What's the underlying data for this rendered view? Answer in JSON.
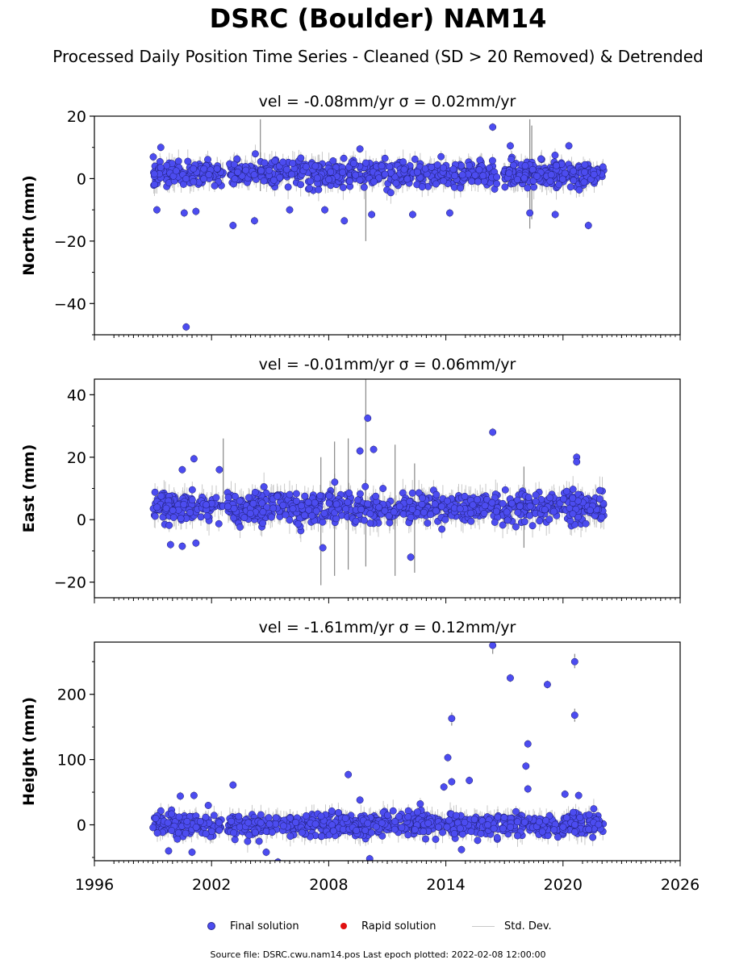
{
  "header": {
    "title": "DSRC (Boulder) NAM14",
    "subtitle": "Processed Daily Position Time Series - Cleaned (SD > 20 Removed) & Detrended"
  },
  "legend": {
    "final": "Final solution",
    "rapid": "Rapid solution",
    "std": "Std. Dev."
  },
  "footer": "Source file: DSRC.cwu.nam14.pos  Last epoch plotted: 2022-02-08 12:00:00",
  "colors": {
    "final_fill": "#4c4cf0",
    "final_edge": "#1a1a6a",
    "rapid": "#e01010",
    "std_dev": "#c8c8c8"
  },
  "chart_data": [
    {
      "type": "scatter",
      "component": "north",
      "title": "vel = -0.08mm/yr   σ = 0.02mm/yr",
      "ylabel": "North (mm)",
      "xlabel": "",
      "xlim": [
        1996,
        2026
      ],
      "ylim": [
        -50,
        20
      ],
      "yticks": [
        -40,
        -20,
        0,
        20
      ],
      "ytick_labels": [
        "−40",
        "−20",
        "0",
        "20"
      ],
      "xticks": [
        1996,
        2002,
        2008,
        2014,
        2020,
        2026
      ],
      "show_xtick_labels": false,
      "data_span": [
        1999.0,
        2022.1
      ],
      "gaps": [
        [
          2002.6,
          2002.8
        ],
        [
          2016.7,
          2016.9
        ]
      ],
      "cluster": {
        "center": 1.5,
        "spread": 2.0
      },
      "outliers": [
        {
          "x": 2000.7,
          "y": -47.5
        },
        {
          "x": 1999.4,
          "y": 10
        },
        {
          "x": 1999.2,
          "y": -10
        },
        {
          "x": 2000.6,
          "y": -11
        },
        {
          "x": 2001.2,
          "y": -10.5
        },
        {
          "x": 2003.1,
          "y": -15
        },
        {
          "x": 2004.2,
          "y": -13.5
        },
        {
          "x": 2006.0,
          "y": -10
        },
        {
          "x": 2007.8,
          "y": -10
        },
        {
          "x": 2008.8,
          "y": -13.5
        },
        {
          "x": 2009.6,
          "y": 9.5
        },
        {
          "x": 2010.2,
          "y": -11.5
        },
        {
          "x": 2012.3,
          "y": -11.5
        },
        {
          "x": 2014.2,
          "y": -11
        },
        {
          "x": 2016.4,
          "y": 16.5
        },
        {
          "x": 2017.3,
          "y": 10.5
        },
        {
          "x": 2018.3,
          "y": -11
        },
        {
          "x": 2019.6,
          "y": -11.5
        },
        {
          "x": 2020.3,
          "y": 10.5
        },
        {
          "x": 2021.3,
          "y": -15
        }
      ],
      "error_bars": [
        {
          "x": 2004.5,
          "y0": -4,
          "y1": 19
        },
        {
          "x": 2009.9,
          "y0": -20,
          "y1": 6
        },
        {
          "x": 2018.3,
          "y0": -16,
          "y1": 19
        },
        {
          "x": 2018.4,
          "y0": -13,
          "y1": 17
        }
      ]
    },
    {
      "type": "scatter",
      "component": "east",
      "title": "vel = -0.01mm/yr   σ = 0.06mm/yr",
      "ylabel": "East (mm)",
      "xlabel": "",
      "xlim": [
        1996,
        2026
      ],
      "ylim": [
        -25,
        45
      ],
      "yticks": [
        -20,
        0,
        20,
        40
      ],
      "ytick_labels": [
        "−20",
        "0",
        "20",
        "40"
      ],
      "xticks": [
        1996,
        2002,
        2008,
        2014,
        2020,
        2026
      ],
      "show_xtick_labels": false,
      "data_span": [
        1999.0,
        2022.1
      ],
      "gaps": [
        [
          2002.6,
          2002.8
        ],
        [
          2016.7,
          2016.9
        ]
      ],
      "cluster": {
        "center": 4,
        "spread": 2.4
      },
      "outliers": [
        {
          "x": 2000.5,
          "y": 16
        },
        {
          "x": 2001.1,
          "y": 19.5
        },
        {
          "x": 2002.4,
          "y": 16
        },
        {
          "x": 1999.9,
          "y": -8
        },
        {
          "x": 2000.5,
          "y": -8.5
        },
        {
          "x": 2001.2,
          "y": -7.5
        },
        {
          "x": 2007.7,
          "y": -9
        },
        {
          "x": 2009.6,
          "y": 22
        },
        {
          "x": 2010.0,
          "y": 32.5
        },
        {
          "x": 2010.3,
          "y": 22.5
        },
        {
          "x": 2012.2,
          "y": -12
        },
        {
          "x": 2016.4,
          "y": 28
        },
        {
          "x": 2020.7,
          "y": 20
        },
        {
          "x": 2020.7,
          "y": 18.5
        }
      ],
      "error_bars": [
        {
          "x": 2002.6,
          "y0": 6,
          "y1": 26
        },
        {
          "x": 2007.6,
          "y0": -21,
          "y1": 20
        },
        {
          "x": 2008.3,
          "y0": -18,
          "y1": 25
        },
        {
          "x": 2009.0,
          "y0": -16,
          "y1": 26
        },
        {
          "x": 2009.9,
          "y0": -15,
          "y1": 45
        },
        {
          "x": 2011.4,
          "y0": -18,
          "y1": 24
        },
        {
          "x": 2012.4,
          "y0": -17,
          "y1": 18
        },
        {
          "x": 2018.0,
          "y0": -9,
          "y1": 17
        }
      ]
    },
    {
      "type": "scatter",
      "component": "height",
      "title": "vel = -1.61mm/yr   σ = 0.12mm/yr",
      "ylabel": "Height (mm)",
      "xlabel": "",
      "xlim": [
        1996,
        2026
      ],
      "ylim": [
        -55,
        280
      ],
      "yticks": [
        0,
        100,
        200
      ],
      "ytick_labels": [
        "0",
        "100",
        "200"
      ],
      "xticks": [
        1996,
        2002,
        2008,
        2014,
        2020,
        2026
      ],
      "xtick_labels": [
        "1996",
        "2002",
        "2008",
        "2014",
        "2020",
        "2026"
      ],
      "show_xtick_labels": true,
      "data_span": [
        1999.0,
        2022.1
      ],
      "gaps": [
        [
          2002.6,
          2002.8
        ],
        [
          2016.7,
          2016.9
        ]
      ],
      "cluster": {
        "center": 0,
        "spread": 9
      },
      "outliers": [
        {
          "x": 2016.4,
          "y": 275
        },
        {
          "x": 2017.3,
          "y": 225
        },
        {
          "x": 2019.2,
          "y": 215
        },
        {
          "x": 2020.6,
          "y": 250
        },
        {
          "x": 2020.6,
          "y": 168
        },
        {
          "x": 2014.3,
          "y": 163
        },
        {
          "x": 2018.2,
          "y": 124
        },
        {
          "x": 2018.1,
          "y": 90
        },
        {
          "x": 2014.1,
          "y": 103
        },
        {
          "x": 2015.2,
          "y": 68
        },
        {
          "x": 2014.3,
          "y": 66
        },
        {
          "x": 2013.9,
          "y": 58
        },
        {
          "x": 2009.0,
          "y": 77
        },
        {
          "x": 2003.1,
          "y": 61
        },
        {
          "x": 2000.4,
          "y": 44
        },
        {
          "x": 2001.1,
          "y": 45
        },
        {
          "x": 2009.6,
          "y": 38
        },
        {
          "x": 2018.2,
          "y": 55
        },
        {
          "x": 2020.1,
          "y": 47
        },
        {
          "x": 2020.8,
          "y": 45
        },
        {
          "x": 2010.1,
          "y": -52
        },
        {
          "x": 2005.4,
          "y": -57
        },
        {
          "x": 2014.8,
          "y": -38
        },
        {
          "x": 2004.8,
          "y": -42
        },
        {
          "x": 2001.0,
          "y": -42
        },
        {
          "x": 1999.8,
          "y": -40
        }
      ],
      "error_bars": [
        {
          "x": 2016.4,
          "y0": 262,
          "y1": 282
        },
        {
          "x": 2020.6,
          "y0": 240,
          "y1": 262
        },
        {
          "x": 2020.6,
          "y0": 158,
          "y1": 178
        },
        {
          "x": 2014.3,
          "y0": 152,
          "y1": 172
        }
      ]
    }
  ]
}
